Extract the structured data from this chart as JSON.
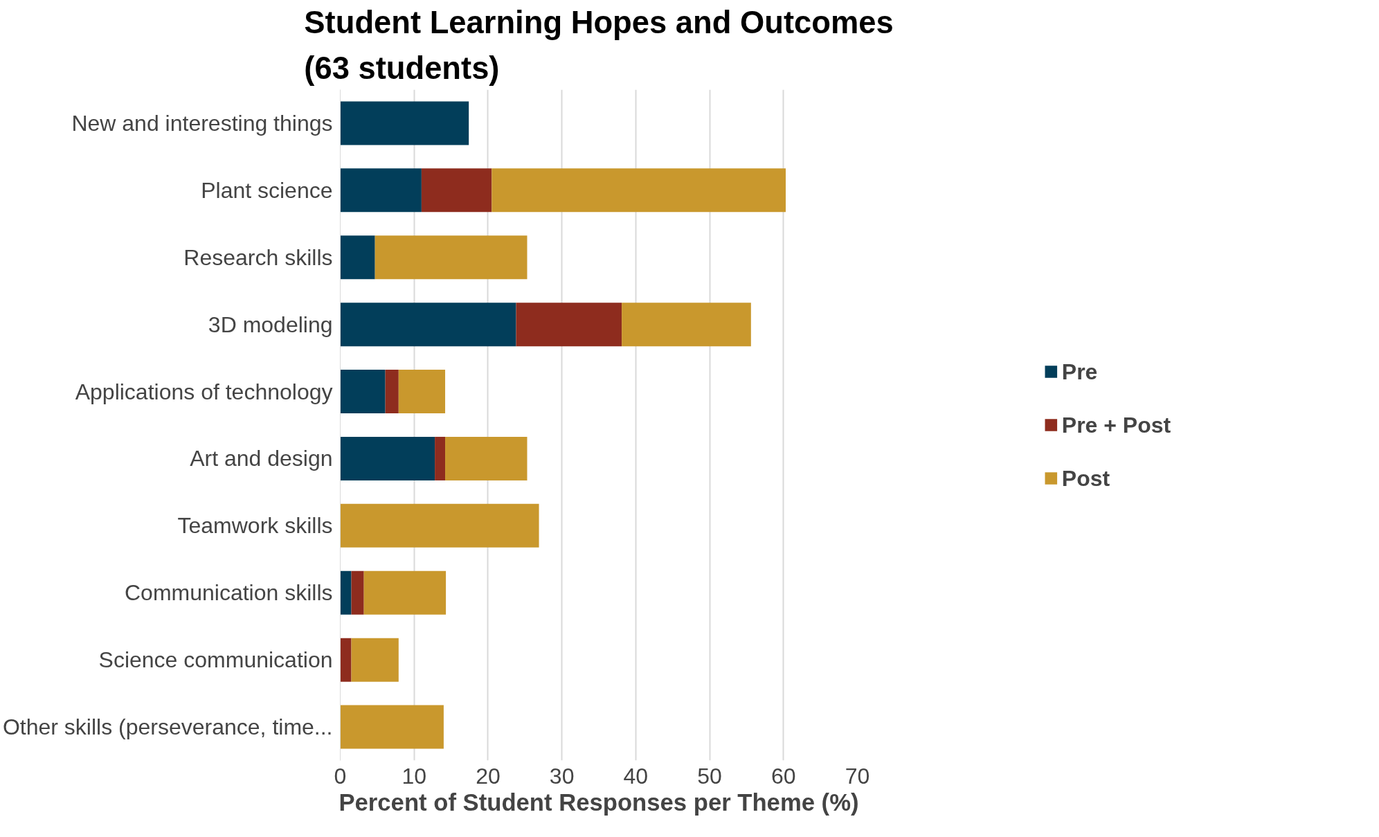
{
  "chart_data": {
    "type": "bar",
    "orientation": "horizontal",
    "stacked": true,
    "title": "Student Learning Hopes and Outcomes\n(63 students)",
    "xlabel": "Percent of Student Responses per Theme (%)",
    "categories": [
      "New and interesting things",
      "Plant science",
      "Research skills",
      "3D modeling",
      "Applications of technology",
      "Art and design",
      "Teamwork skills",
      "Communication skills",
      "Science communication",
      "Other skills (perseverance, time..."
    ],
    "series": [
      {
        "name": "Pre",
        "color": "#023e5a",
        "values": [
          17.4,
          11.0,
          4.7,
          23.8,
          6.1,
          12.8,
          null,
          1.5,
          null,
          null
        ]
      },
      {
        "name": "Pre + Post",
        "color": "#8e2c1e",
        "values": [
          null,
          9.5,
          null,
          14.3,
          1.8,
          1.4,
          null,
          1.7,
          1.5,
          null
        ]
      },
      {
        "name": "Post",
        "color": "#c9982d",
        "values": [
          null,
          39.8,
          20.6,
          17.5,
          6.3,
          11.1,
          26.9,
          11.1,
          6.4,
          14.0
        ]
      }
    ],
    "xlim": [
      0,
      70
    ],
    "xticks": [
      0,
      10,
      20,
      30,
      40,
      50,
      60,
      70
    ],
    "grid": "x",
    "legend": "right"
  }
}
